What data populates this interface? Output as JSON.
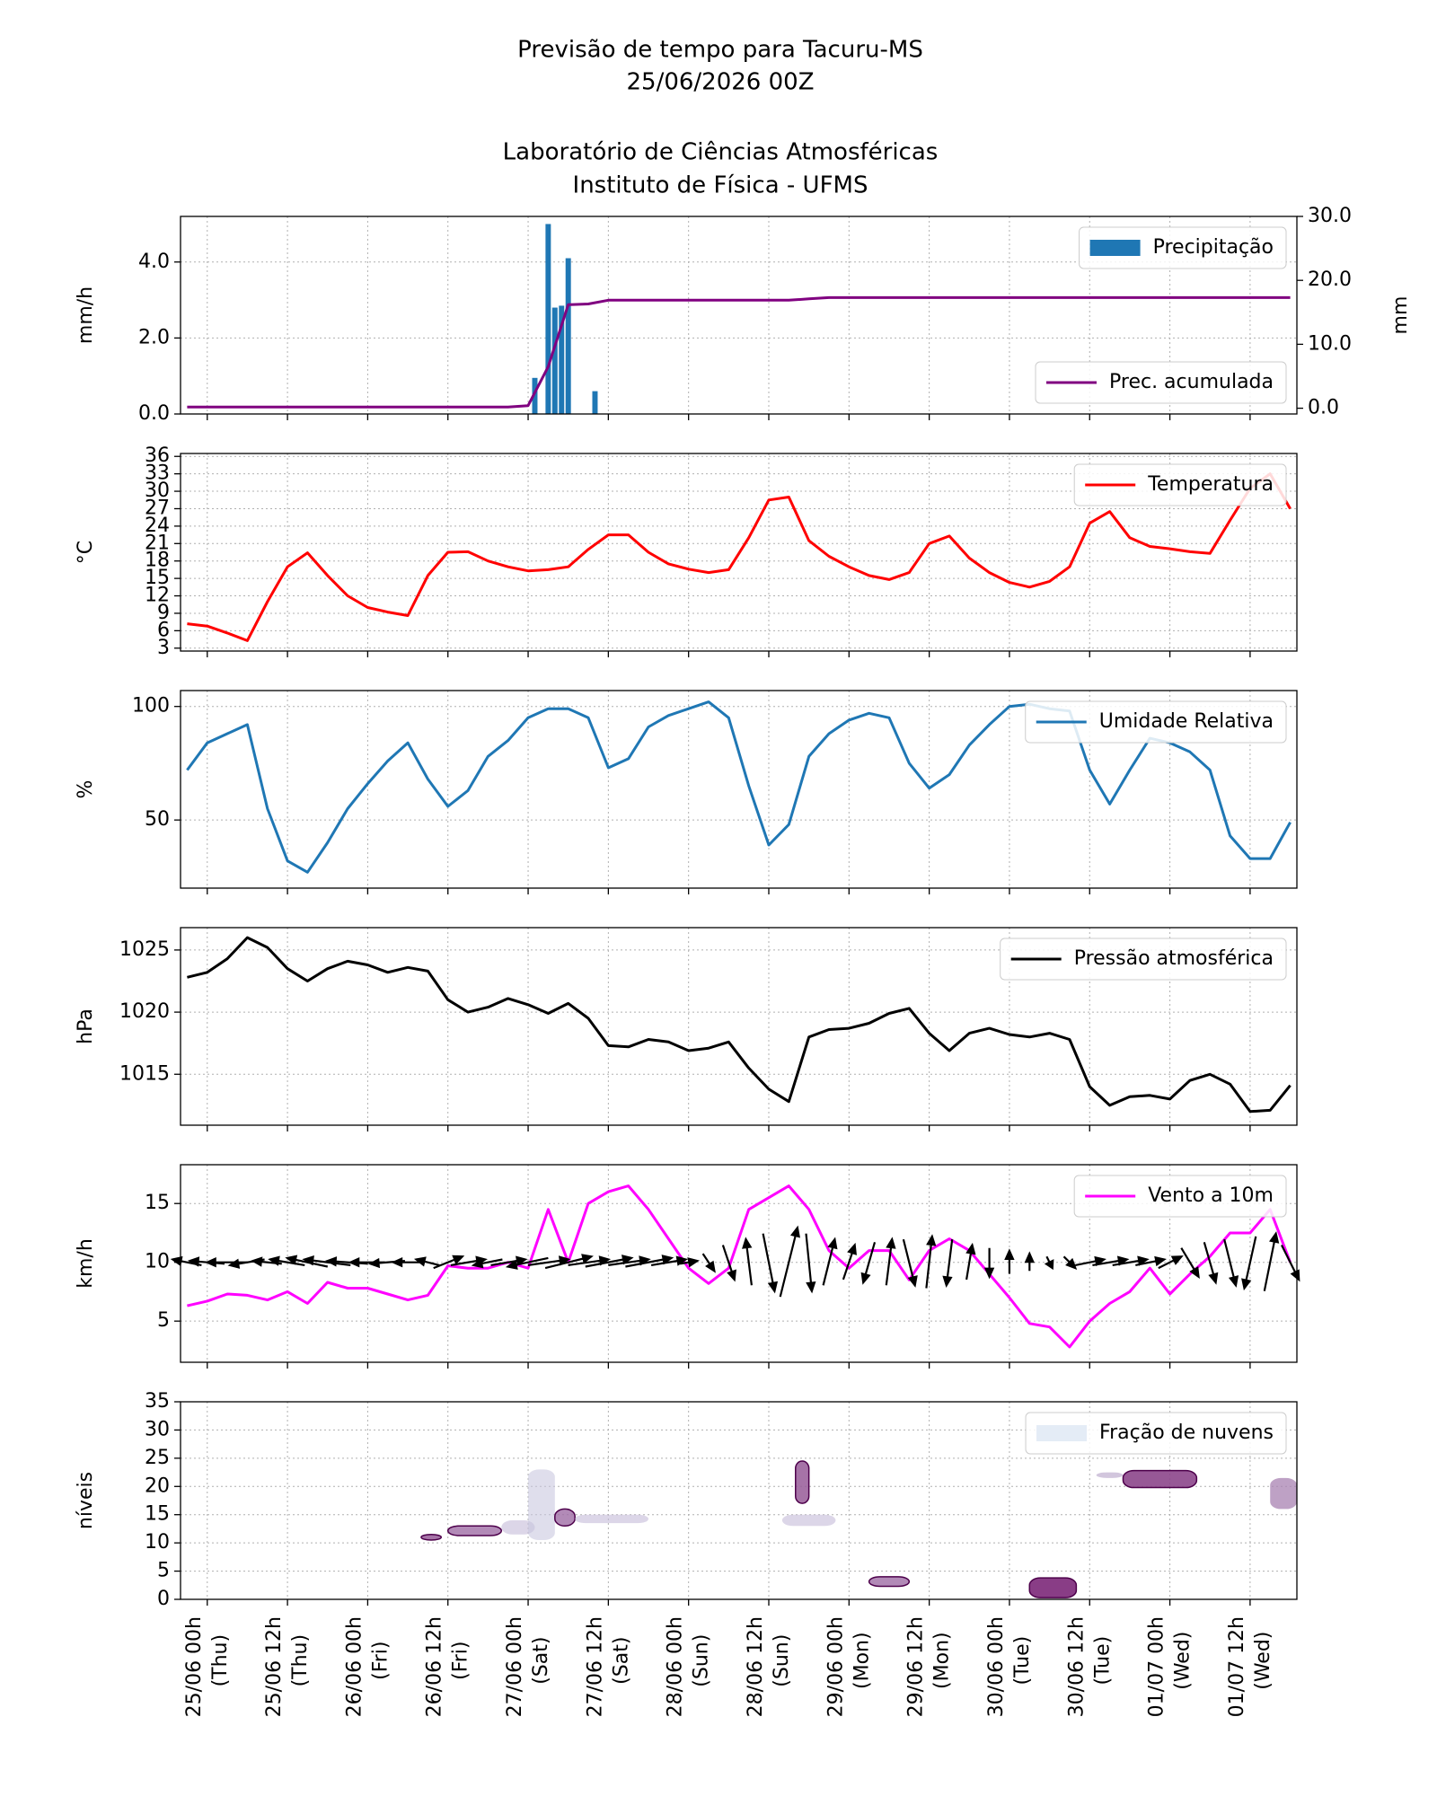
{
  "title": [
    "Previsão de tempo para Tacuru-MS",
    "25/06/2026 00Z"
  ],
  "subtitle": [
    "Laboratório de Ciências Atmosféricas",
    "Instituto de Física - UFMS"
  ],
  "x": [
    "24/06 21h",
    "25/06 00h",
    "25/06 03h",
    "25/06 06h",
    "25/06 09h",
    "25/06 12h",
    "25/06 15h",
    "25/06 18h",
    "25/06 21h",
    "26/06 00h",
    "26/06 03h",
    "26/06 06h",
    "26/06 09h",
    "26/06 12h",
    "26/06 15h",
    "26/06 18h",
    "26/06 21h",
    "27/06 00h",
    "27/06 03h",
    "27/06 06h",
    "27/06 09h",
    "27/06 12h",
    "27/06 15h",
    "27/06 18h",
    "27/06 21h",
    "28/06 00h",
    "28/06 03h",
    "28/06 06h",
    "28/06 09h",
    "28/06 12h",
    "28/06 15h",
    "28/06 18h",
    "28/06 21h",
    "29/06 00h",
    "29/06 03h",
    "29/06 06h",
    "29/06 09h",
    "29/06 12h",
    "29/06 15h",
    "29/06 18h",
    "29/06 21h",
    "30/06 00h",
    "30/06 03h",
    "30/06 06h",
    "30/06 09h",
    "30/06 12h",
    "30/06 15h",
    "30/06 18h",
    "30/06 21h",
    "01/07 00h",
    "01/07 03h",
    "01/07 06h",
    "01/07 09h",
    "01/07 12h",
    "01/07 15h",
    "01/07 18h"
  ],
  "xlim": [
    "24/06 20h",
    "01/07 19h"
  ],
  "xticks": [
    {
      "value": "25/06 00h",
      "label": "25/06 00h (Thu)"
    },
    {
      "value": "25/06 12h",
      "label": "25/06 12h (Thu)"
    },
    {
      "value": "26/06 00h",
      "label": "26/06 00h (Fri)"
    },
    {
      "value": "26/06 12h",
      "label": "26/06 12h (Fri)"
    },
    {
      "value": "27/06 00h",
      "label": "27/06 00h (Sat)"
    },
    {
      "value": "27/06 12h",
      "label": "27/06 12h (Sat)"
    },
    {
      "value": "28/06 00h",
      "label": "28/06 00h (Sun)"
    },
    {
      "value": "28/06 12h",
      "label": "28/06 12h (Sun)"
    },
    {
      "value": "29/06 00h",
      "label": "29/06 00h (Mon)"
    },
    {
      "value": "29/06 12h",
      "label": "29/06 12h (Mon)"
    },
    {
      "value": "30/06 00h",
      "label": "30/06 00h (Tue)"
    },
    {
      "value": "30/06 12h",
      "label": "30/06 12h (Tue)"
    },
    {
      "value": "01/07 00h",
      "label": "01/07 00h (Wed)"
    },
    {
      "value": "01/07 12h",
      "label": "01/07 12h (Wed)"
    }
  ],
  "chart_data": [
    {
      "type": "bar",
      "ylabel": "mm/h",
      "y2label": "mm",
      "grid": true,
      "ylim": [
        0,
        5.2
      ],
      "yticks": [
        {
          "value": 0,
          "label": "0.0"
        },
        {
          "value": 2,
          "label": "2.0"
        },
        {
          "value": 4,
          "label": "4.0"
        }
      ],
      "y2lim": [
        -0.9,
        30
      ],
      "y2ticks": [
        {
          "value": 0,
          "label": "0.0"
        },
        {
          "value": 10,
          "label": "10.0"
        },
        {
          "value": 20,
          "label": "20.0"
        },
        {
          "value": 30,
          "label": "30.0"
        }
      ],
      "series": [
        {
          "name": "Precipitação",
          "color": "#1f77b4",
          "legend": "upper right",
          "x": [
            "27/06 01h",
            "27/06 03h",
            "27/06 04h",
            "27/06 05h",
            "27/06 06h",
            "27/06 10h"
          ],
          "values": [
            0.95,
            5.0,
            2.8,
            2.85,
            4.1,
            0.6
          ]
        },
        {
          "name": "Prec. acumulada",
          "color": "#800080",
          "legend": "lower right",
          "axis": "y2",
          "values": [
            0.2,
            0.2,
            0.2,
            0.2,
            0.2,
            0.2,
            0.2,
            0.2,
            0.2,
            0.2,
            0.2,
            0.2,
            0.2,
            0.2,
            0.2,
            0.2,
            0.2,
            0.4,
            6.5,
            16.2,
            16.3,
            16.9,
            16.9,
            16.9,
            16.9,
            16.9,
            16.9,
            16.9,
            16.9,
            16.9,
            16.9,
            17.1,
            17.3,
            17.3,
            17.3,
            17.3,
            17.3,
            17.3,
            17.3,
            17.3,
            17.3,
            17.3,
            17.3,
            17.3,
            17.3,
            17.3,
            17.3,
            17.3,
            17.3,
            17.3,
            17.3,
            17.3,
            17.3,
            17.3,
            17.3,
            17.3
          ]
        }
      ]
    },
    {
      "type": "line",
      "ylabel": "°C",
      "grid": true,
      "ylim": [
        2.5,
        36.5
      ],
      "yticks": [
        3,
        6,
        9,
        12,
        15,
        18,
        21,
        24,
        27,
        30,
        33,
        36
      ],
      "series": [
        {
          "name": "Temperatura",
          "color": "#ff0000",
          "legend": "upper right",
          "values": [
            7.2,
            6.8,
            5.6,
            4.3,
            11,
            17,
            19.4,
            15.5,
            12,
            10,
            9.2,
            8.6,
            15.5,
            19.5,
            19.6,
            18,
            17,
            16.3,
            16.5,
            17,
            20,
            22.5,
            22.5,
            19.5,
            17.5,
            16.6,
            16,
            16.5,
            22,
            28.5,
            29,
            21.5,
            18.8,
            17,
            15.5,
            14.8,
            16,
            21,
            22.3,
            18.5,
            16,
            14.3,
            13.5,
            14.5,
            17,
            24.5,
            26.5,
            22,
            20.5,
            20.1,
            19.6,
            19.3,
            25,
            30.5,
            33,
            27
          ]
        }
      ]
    },
    {
      "type": "line",
      "ylabel": "%",
      "grid": true,
      "ylim": [
        20,
        107
      ],
      "yticks": [
        50,
        100
      ],
      "series": [
        {
          "name": "Umidade Relativa",
          "color": "#1f77b4",
          "legend": "upper right",
          "values": [
            72,
            84,
            88,
            92,
            55,
            32,
            27,
            40,
            55,
            66,
            76,
            84,
            68,
            56,
            63,
            78,
            85,
            95,
            99,
            99,
            95,
            73,
            77,
            91,
            96,
            99,
            102,
            95,
            65,
            39,
            48,
            78,
            88,
            94,
            97,
            95,
            75,
            64,
            70,
            83,
            92,
            100,
            101,
            99,
            98,
            72,
            57,
            72,
            86,
            84,
            80,
            72,
            43,
            33,
            33,
            49
          ]
        }
      ]
    },
    {
      "type": "line",
      "ylabel": "hPa",
      "grid": true,
      "ylim": [
        1010.9,
        1026.8
      ],
      "yticks": [
        1015,
        1020,
        1025
      ],
      "series": [
        {
          "name": "Pressão atmosférica",
          "color": "#000000",
          "legend": "upper right",
          "values": [
            1022.8,
            1023.2,
            1024.3,
            1026,
            1025.2,
            1023.5,
            1022.5,
            1023.5,
            1024.1,
            1023.8,
            1023.2,
            1023.6,
            1023.3,
            1021,
            1020,
            1020.4,
            1021.1,
            1020.6,
            1019.9,
            1020.7,
            1019.5,
            1017.3,
            1017.2,
            1017.8,
            1017.6,
            1016.9,
            1017.1,
            1017.6,
            1015.5,
            1013.8,
            1012.8,
            1018,
            1018.6,
            1018.7,
            1019.1,
            1019.9,
            1020.3,
            1018.3,
            1016.9,
            1018.3,
            1018.7,
            1018.2,
            1018,
            1018.3,
            1017.8,
            1014,
            1012.5,
            1013.2,
            1013.3,
            1013,
            1014.5,
            1015,
            1014.2,
            1012,
            1012.1,
            1014.1
          ]
        }
      ]
    },
    {
      "type": "line",
      "ylabel": "km/h",
      "grid": true,
      "ylim": [
        1.5,
        18.3
      ],
      "yticks": [
        5,
        10,
        15
      ],
      "series": [
        {
          "name": "Vento a 10m",
          "color": "#ff00ff",
          "legend": "upper right",
          "values": [
            6.3,
            6.7,
            7.3,
            7.2,
            6.8,
            7.5,
            6.5,
            8.3,
            7.8,
            7.8,
            7.3,
            6.8,
            7.2,
            9.7,
            9.5,
            9.5,
            10,
            9.5,
            14.5,
            10,
            15,
            16,
            16.5,
            14.5,
            12,
            9.5,
            8.2,
            9.5,
            14.5,
            15.5,
            16.5,
            14.5,
            11,
            9.5,
            11,
            11,
            8.5,
            11,
            12,
            11,
            9,
            7,
            4.8,
            4.5,
            2.8,
            5,
            6.5,
            7.5,
            9.5,
            7.3,
            9,
            10.5,
            12.5,
            12.5,
            14.5,
            10
          ]
        }
      ],
      "arrows": {
        "y": 10,
        "color": "#000000",
        "u": [
          -5,
          -6,
          -7,
          -6,
          -5,
          -6,
          -7,
          -8,
          -7,
          -6,
          -6,
          -5,
          -4,
          5,
          6,
          -5,
          6,
          -7,
          7,
          8,
          7,
          8,
          7,
          8,
          6,
          3,
          2,
          2,
          -1,
          2,
          3,
          1,
          2,
          2,
          -2,
          1,
          2,
          1,
          -1,
          1,
          0,
          0,
          0,
          1,
          2,
          5,
          6,
          6,
          5,
          4,
          3,
          2,
          2,
          -2,
          2,
          3
        ],
        "v": [
          1,
          0.5,
          0,
          -1,
          0.5,
          1,
          1.5,
          1,
          0.5,
          0,
          -0.5,
          0,
          1,
          2,
          1,
          -1,
          1,
          -1.5,
          1,
          2,
          1,
          1.5,
          1,
          1.5,
          1,
          0.5,
          -3,
          -6,
          8,
          -10,
          12,
          -10,
          8,
          6,
          -7,
          8,
          -8,
          9,
          -8,
          6,
          -5,
          4,
          3,
          -2,
          -2,
          1,
          1,
          1,
          1,
          2,
          -5,
          -7,
          -8,
          -9,
          10,
          -6
        ]
      }
    },
    {
      "type": "contour",
      "ylabel": "níveis",
      "grid": true,
      "ylim": [
        0,
        35
      ],
      "yticks": [
        0,
        5,
        10,
        15,
        20,
        25,
        30,
        35
      ],
      "name": "Fração de nuvens",
      "color": "#e4ecf6",
      "legend": "upper right",
      "colormap": [
        "#d6e2f1",
        "#7a1f72"
      ],
      "patches": [
        {
          "x": [
            "26/06 08h",
            "26/06 11h"
          ],
          "y": [
            10.5,
            11.5
          ],
          "value": 0.7
        },
        {
          "x": [
            "26/06 12h",
            "26/06 20h"
          ],
          "y": [
            11.3,
            13
          ],
          "value": 0.6
        },
        {
          "x": [
            "26/06 20h",
            "27/06 01h"
          ],
          "y": [
            11.5,
            14
          ],
          "value": 0.2
        },
        {
          "x": [
            "27/06 00h",
            "27/06 04h"
          ],
          "y": [
            10.5,
            23
          ],
          "value": 0.15
        },
        {
          "x": [
            "27/06 04h",
            "27/06 07h"
          ],
          "y": [
            13,
            16
          ],
          "value": 0.6
        },
        {
          "x": [
            "27/06 07h",
            "27/06 18h"
          ],
          "y": [
            13.5,
            15
          ],
          "value": 0.2
        },
        {
          "x": [
            "28/06 14h",
            "28/06 22h"
          ],
          "y": [
            13,
            15
          ],
          "value": 0.2
        },
        {
          "x": [
            "28/06 16h",
            "28/06 18h"
          ],
          "y": [
            17,
            24.5
          ],
          "value": 0.7
        },
        {
          "x": [
            "29/06 03h",
            "29/06 09h"
          ],
          "y": [
            2.3,
            4
          ],
          "value": 0.6
        },
        {
          "x": [
            "30/06 03h",
            "30/06 10h"
          ],
          "y": [
            0.3,
            3.8
          ],
          "value": 0.9
        },
        {
          "x": [
            "30/06 13h",
            "30/06 17h"
          ],
          "y": [
            21.5,
            22.5
          ],
          "value": 0.3
        },
        {
          "x": [
            "30/06 17h",
            "01/07 04h"
          ],
          "y": [
            19.8,
            22.8
          ],
          "value": 0.8
        },
        {
          "x": [
            "01/07 15h",
            "01/07 19h"
          ],
          "y": [
            16,
            21.5
          ],
          "value": 0.5
        }
      ]
    }
  ]
}
